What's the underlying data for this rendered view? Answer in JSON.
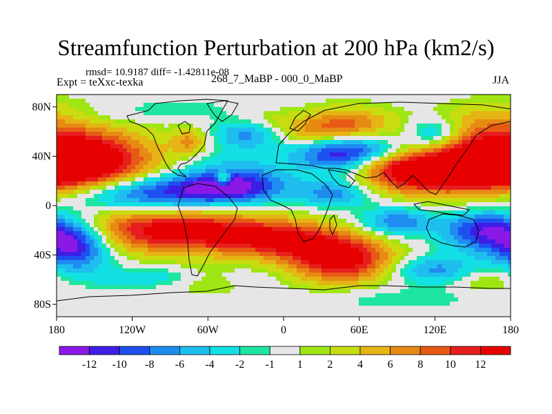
{
  "header": {
    "title": "Streamfunction Perturbation at 200 hPa (km2/s)",
    "stats": "rmsd= 10.9187 diff= -1.42811e-08",
    "experiment": "Expt = teXxc-texka",
    "subtitle": "268_7_MaBP - 000_0_MaBP",
    "season": "JJA"
  },
  "chart_data": {
    "type": "heatmap",
    "title": "Streamfunction Perturbation at 200 hPa (km2/s)",
    "subtitle": "268_7_MaBP - 000_0_MaBP",
    "units": "km2/s",
    "season": "JJA",
    "projection": "cylindrical-equidistant",
    "xlim": [
      -180,
      180
    ],
    "ylim": [
      -90,
      90
    ],
    "x_ticks": [
      {
        "value": -180,
        "label": "180"
      },
      {
        "value": -120,
        "label": "120W"
      },
      {
        "value": -60,
        "label": "60W"
      },
      {
        "value": 0,
        "label": "0"
      },
      {
        "value": 60,
        "label": "60E"
      },
      {
        "value": 120,
        "label": "120E"
      },
      {
        "value": 180,
        "label": "180"
      }
    ],
    "y_ticks": [
      {
        "value": 80,
        "label": "80N"
      },
      {
        "value": 40,
        "label": "40N"
      },
      {
        "value": 0,
        "label": "0"
      },
      {
        "value": -40,
        "label": "40S"
      },
      {
        "value": -80,
        "label": "80S"
      }
    ],
    "contour_levels": [
      -12,
      -10,
      -8,
      -6,
      -4,
      -2,
      -1,
      1,
      2,
      4,
      6,
      8,
      10,
      12
    ],
    "colorbar_labels": [
      "-12",
      "-10",
      "-8",
      "-6",
      "-4",
      "-2",
      "-1",
      "1",
      "2",
      "4",
      "6",
      "8",
      "10",
      "12"
    ],
    "colorbar_colors": [
      "#8a19e6",
      "#3c1ee6",
      "#1e50f0",
      "#1e8cf0",
      "#1ebeee",
      "#12e0e4",
      "#1ee6a0",
      "#e6e6e6",
      "#a0e614",
      "#c8dc10",
      "#e6b414",
      "#e68a14",
      "#e65a14",
      "#e61e1e",
      "#e60000"
    ],
    "features": [
      {
        "lon": -158,
        "lat": 32,
        "value": 14.0,
        "rx": 40,
        "ry": 20
      },
      {
        "lon": 154,
        "lat": 34,
        "value": 13.5,
        "rx": 45,
        "ry": 20
      },
      {
        "lon": 100,
        "lat": 26,
        "value": 11.0,
        "rx": 30,
        "ry": 10
      },
      {
        "lon": -40,
        "lat": 30,
        "value": -3.5,
        "rx": 26,
        "ry": 10
      },
      {
        "lon": -120,
        "lat": 10,
        "value": -13.0,
        "rx": 55,
        "ry": 11
      },
      {
        "lon": -40,
        "lat": 15,
        "value": -10.0,
        "rx": 30,
        "ry": 9
      },
      {
        "lon": -85,
        "lat": -20,
        "value": 14.0,
        "rx": 55,
        "ry": 13
      },
      {
        "lon": 0,
        "lat": -28,
        "value": 9.5,
        "rx": 35,
        "ry": 10
      },
      {
        "lon": 45,
        "lat": -44,
        "value": 14.0,
        "rx": 30,
        "ry": 13
      },
      {
        "lon": -165,
        "lat": -32,
        "value": -13.0,
        "rx": 20,
        "ry": 14
      },
      {
        "lon": 160,
        "lat": -20,
        "value": -12.5,
        "rx": 24,
        "ry": 12
      },
      {
        "lon": 90,
        "lat": -13,
        "value": -8.0,
        "rx": 20,
        "ry": 8
      },
      {
        "lon": 50,
        "lat": 43,
        "value": -13.0,
        "rx": 30,
        "ry": 11
      },
      {
        "lon": 40,
        "lat": 10,
        "value": -7.0,
        "rx": 20,
        "ry": 8
      },
      {
        "lon": -30,
        "lat": 57,
        "value": -6.5,
        "rx": 18,
        "ry": 8
      },
      {
        "lon": -48,
        "lat": 22,
        "value": 10.0,
        "rx": 4,
        "ry": 4
      },
      {
        "lon": 50,
        "lat": 65,
        "value": 9.0,
        "rx": 24,
        "ry": 10
      },
      {
        "lon": 20,
        "lat": 58,
        "value": 5.0,
        "rx": 20,
        "ry": 8
      },
      {
        "lon": 120,
        "lat": 58,
        "value": -8.0,
        "rx": 15,
        "ry": 9
      },
      {
        "lon": -75,
        "lat": 52,
        "value": 6.0,
        "rx": 10,
        "ry": 7
      },
      {
        "lon": -85,
        "lat": 78,
        "value": -2.0,
        "rx": 30,
        "ry": 6
      },
      {
        "lon": 170,
        "lat": 72,
        "value": 3.0,
        "rx": 30,
        "ry": 10
      },
      {
        "lon": -60,
        "lat": -60,
        "value": 4.0,
        "rx": 20,
        "ry": 8
      },
      {
        "lon": 160,
        "lat": -60,
        "value": 3.5,
        "rx": 20,
        "ry": 8
      },
      {
        "lon": 120,
        "lat": -52,
        "value": -7.0,
        "rx": 25,
        "ry": 8
      },
      {
        "lon": -150,
        "lat": 72,
        "value": -2.0,
        "rx": 30,
        "ry": 7
      },
      {
        "lon": -90,
        "lat": -58,
        "value": -3.5,
        "rx": 50,
        "ry": 6
      },
      {
        "lon": 90,
        "lat": -75,
        "value": -2.0,
        "rx": 50,
        "ry": 6
      },
      {
        "lon": 80,
        "lat": 35,
        "value": 3.0,
        "rx": 20,
        "ry": 5
      },
      {
        "lon": -10,
        "lat": 70,
        "value": 2.0,
        "rx": 15,
        "ry": 6
      }
    ]
  }
}
